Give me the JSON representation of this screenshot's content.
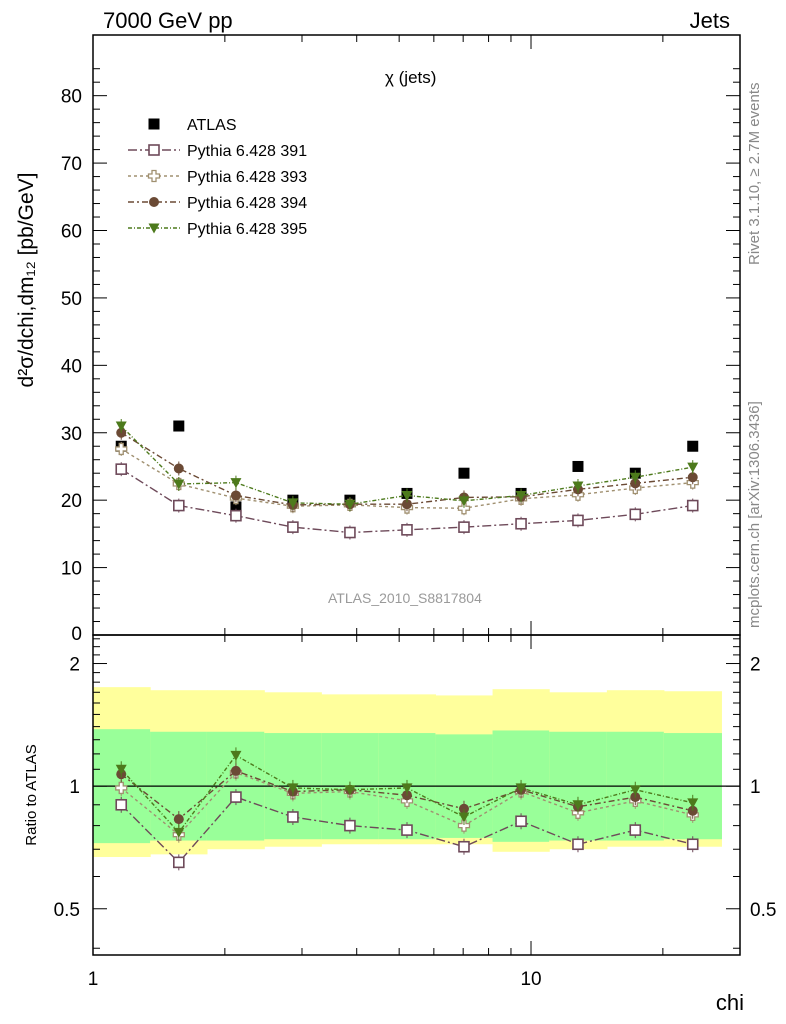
{
  "header": {
    "left": "7000 GeV pp",
    "right": "Jets"
  },
  "plot_title": "χ (jets)",
  "analysis_label": "ATLAS_2010_S8817804",
  "side_text": {
    "rivet": "Rivet 3.1.10, ≥ 2.7M events",
    "mcplots": "mcplots.cern.ch [arXiv:1306.3436]"
  },
  "colors": {
    "atlas": "#000000",
    "p391": "#6e4a5a",
    "p393": "#a09070",
    "p394": "#6b4a35",
    "p395": "#4d7a1c",
    "band_outer": "#ffff9c",
    "band_inner": "#99ff99"
  },
  "chart_data": [
    {
      "type": "scatter",
      "title": "χ (jets)",
      "xlabel": "chi",
      "ylabel": "d²σ/dchi,dm₁₂ [pb/GeV]",
      "xscale": "log",
      "xlim": [
        1,
        30
      ],
      "ylim": [
        0,
        89
      ],
      "xticklabels": [
        "1",
        "10"
      ],
      "yticklabels": [
        "0",
        "10",
        "20",
        "30",
        "40",
        "50",
        "60",
        "70",
        "80"
      ],
      "legend_position": "top-left",
      "x_bin_edges": [
        1.0,
        1.35,
        1.82,
        2.46,
        3.32,
        4.48,
        6.05,
        8.17,
        11.0,
        14.9,
        20.1,
        27.2
      ],
      "series": [
        {
          "name": "ATLAS",
          "marker": "square-filled",
          "x": [
            1.16,
            1.57,
            2.12,
            2.86,
            3.86,
            5.21,
            7.03,
            9.49,
            12.8,
            17.3,
            23.4
          ],
          "y": [
            28,
            31,
            19,
            20,
            20,
            21,
            24,
            21,
            25,
            24,
            28
          ]
        },
        {
          "name": "Pythia 6.428 391",
          "marker": "square-open",
          "x": [
            1.16,
            1.57,
            2.12,
            2.86,
            3.86,
            5.21,
            7.03,
            9.49,
            12.8,
            17.3,
            23.4
          ],
          "y": [
            24.6,
            19.2,
            17.7,
            16.0,
            15.2,
            15.6,
            16.0,
            16.5,
            17.0,
            17.9,
            19.2
          ]
        },
        {
          "name": "Pythia 6.428 393",
          "marker": "cross-open",
          "x": [
            1.16,
            1.57,
            2.12,
            2.86,
            3.86,
            5.21,
            7.03,
            9.49,
            12.8,
            17.3,
            23.4
          ],
          "y": [
            27.6,
            22.4,
            20.3,
            19.1,
            19.3,
            18.9,
            18.8,
            20.2,
            20.8,
            21.8,
            22.6
          ]
        },
        {
          "name": "Pythia 6.428 394",
          "marker": "circle-filled",
          "x": [
            1.16,
            1.57,
            2.12,
            2.86,
            3.86,
            5.21,
            7.03,
            9.49,
            12.8,
            17.3,
            23.4
          ],
          "y": [
            30.0,
            24.7,
            20.7,
            19.3,
            19.4,
            19.4,
            20.4,
            20.5,
            21.6,
            22.5,
            23.4
          ]
        },
        {
          "name": "Pythia 6.428 395",
          "marker": "triangle-down-filled",
          "x": [
            1.16,
            1.57,
            2.12,
            2.86,
            3.86,
            5.21,
            7.03,
            9.49,
            12.8,
            17.3,
            23.4
          ],
          "y": [
            31.0,
            22.4,
            22.6,
            19.6,
            19.4,
            20.7,
            19.9,
            20.7,
            22.1,
            23.4,
            24.9
          ]
        }
      ]
    },
    {
      "type": "scatter",
      "xlabel": "chi",
      "ylabel": "Ratio to ATLAS",
      "xscale": "log",
      "yscale": "log",
      "xlim": [
        1,
        30
      ],
      "ylim": [
        0.385,
        2.35
      ],
      "yticklabels": [
        "0.5",
        "1",
        "2"
      ],
      "reference_line": 1,
      "band_outer": {
        "upper": [
          1.75,
          1.72,
          1.72,
          1.7,
          1.68,
          1.68,
          1.67,
          1.73,
          1.7,
          1.72,
          1.71
        ],
        "lower": [
          0.67,
          0.68,
          0.7,
          0.71,
          0.72,
          0.72,
          0.72,
          0.69,
          0.7,
          0.71,
          0.71
        ]
      },
      "band_inner": {
        "upper": [
          1.38,
          1.36,
          1.36,
          1.35,
          1.35,
          1.35,
          1.34,
          1.37,
          1.36,
          1.36,
          1.35
        ]
      },
      "series": [
        {
          "name": "Pythia 6.428 391",
          "marker": "square-open",
          "y": [
            0.9,
            0.65,
            0.94,
            0.84,
            0.8,
            0.78,
            0.71,
            0.82,
            0.72,
            0.78,
            0.72
          ]
        },
        {
          "name": "Pythia 6.428 393",
          "marker": "cross-open",
          "y": [
            0.99,
            0.76,
            1.08,
            0.96,
            0.97,
            0.92,
            0.8,
            0.97,
            0.86,
            0.92,
            0.85
          ]
        },
        {
          "name": "Pythia 6.428 394",
          "marker": "circle-filled",
          "y": [
            1.07,
            0.83,
            1.09,
            0.97,
            0.98,
            0.95,
            0.88,
            0.98,
            0.89,
            0.94,
            0.87
          ]
        },
        {
          "name": "Pythia 6.428 395",
          "marker": "triangle-down-filled",
          "y": [
            1.1,
            0.77,
            1.19,
            0.99,
            0.98,
            0.99,
            0.84,
            0.99,
            0.9,
            0.98,
            0.91
          ]
        }
      ]
    }
  ]
}
